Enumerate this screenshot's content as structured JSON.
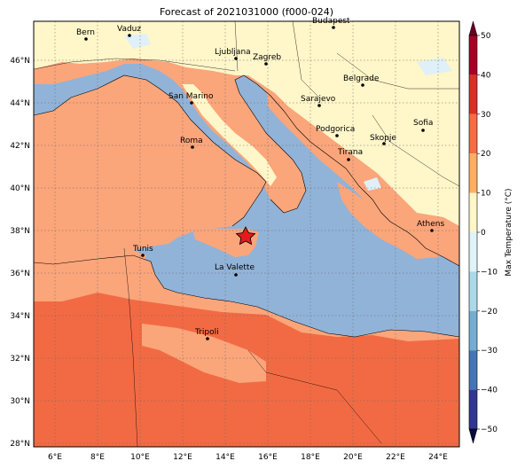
{
  "title": "Forecast of 2021031000 (f000-024)",
  "colorbar": {
    "label": "Max Temperature (°C)",
    "ticks": [
      "50",
      "40",
      "30",
      "20",
      "10",
      "0",
      "−10",
      "−20",
      "−30",
      "−40",
      "−50"
    ],
    "colors": [
      "#67001f",
      "#b2182b",
      "#d6382b",
      "#f46d43",
      "#fdae61",
      "#fff6c9",
      "#e0f3f8",
      "#abd9e9",
      "#74add1",
      "#4575b4",
      "#313695"
    ]
  },
  "map": {
    "lon_labels": [
      "6°E",
      "8°E",
      "10°E",
      "12°E",
      "14°E",
      "16°E",
      "18°E",
      "20°E",
      "22°E",
      "24°E"
    ],
    "lat_labels": [
      "46°N",
      "44°N",
      "42°N",
      "40°N",
      "38°N",
      "36°N",
      "34°N",
      "32°N",
      "30°N",
      "28°N"
    ],
    "colors": {
      "sea": "#91b3d8",
      "warm": "#fba57a",
      "hot": "#f26a43",
      "mild": "#fff6c9",
      "cool": "#e0f0f8"
    },
    "cities": [
      {
        "name": "Bern"
      },
      {
        "name": "Vaduz"
      },
      {
        "name": "Budapest"
      },
      {
        "name": "Ljubljana"
      },
      {
        "name": "Zagreb"
      },
      {
        "name": "Belgrade"
      },
      {
        "name": "San Marino"
      },
      {
        "name": "Sarajevo"
      },
      {
        "name": "Sofia"
      },
      {
        "name": "Podgorica"
      },
      {
        "name": "Skopje"
      },
      {
        "name": "Roma"
      },
      {
        "name": "Tirana"
      },
      {
        "name": "Athens"
      },
      {
        "name": "Tunis"
      },
      {
        "name": "La Valette"
      },
      {
        "name": "Tripoli"
      }
    ],
    "marker": "star-icon"
  }
}
